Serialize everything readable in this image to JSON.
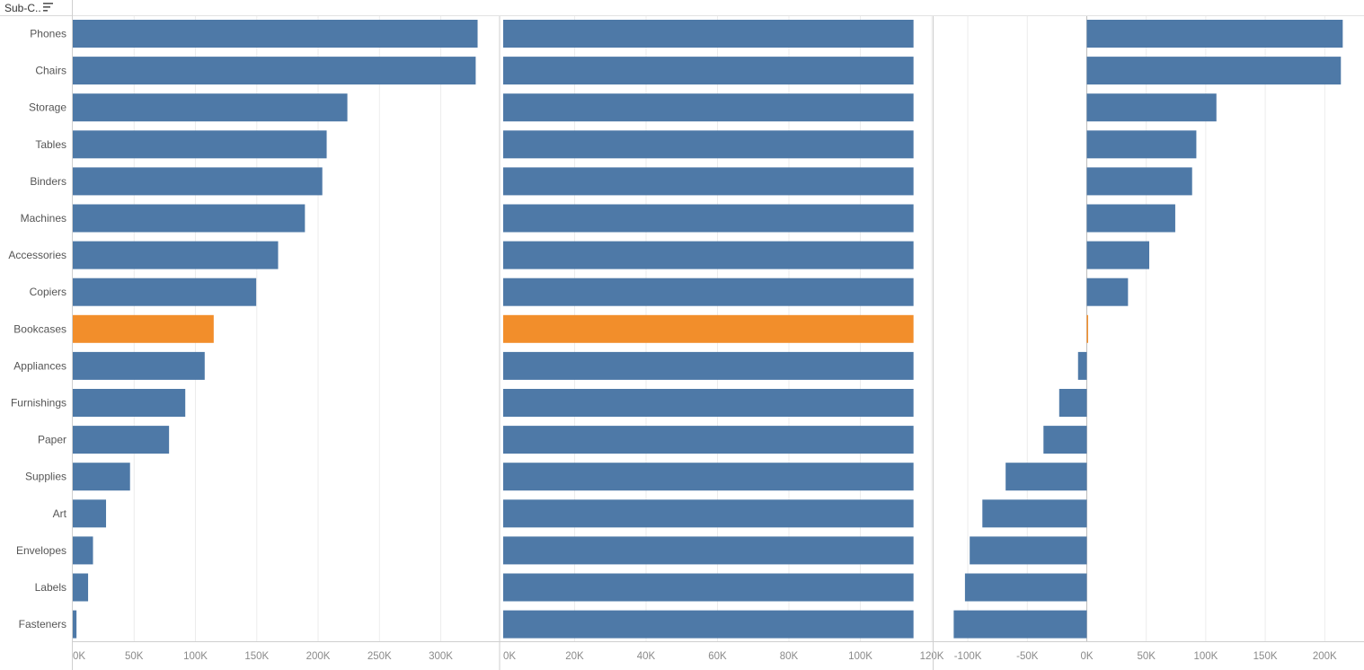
{
  "header": {
    "label": "Sub-C.."
  },
  "colors": {
    "bar": "#4e79a7",
    "highlight": "#f28e2b",
    "grid": "#ececec",
    "axis": "#cfcfcf"
  },
  "chart_data": {
    "type": "bar",
    "orientation": "horizontal",
    "highlight_category": "Bookcases",
    "categories": [
      "Phones",
      "Chairs",
      "Storage",
      "Tables",
      "Binders",
      "Machines",
      "Accessories",
      "Copiers",
      "Bookcases",
      "Appliances",
      "Furnishings",
      "Paper",
      "Supplies",
      "Art",
      "Envelopes",
      "Labels",
      "Fasteners"
    ],
    "panels": [
      {
        "xlim": [
          0,
          345000
        ],
        "ticks": [
          0,
          50000,
          100000,
          150000,
          200000,
          250000,
          300000
        ],
        "tick_labels": [
          "0K",
          "50K",
          "100K",
          "150K",
          "200K",
          "250K",
          "300K"
        ],
        "values": [
          330007,
          328449,
          223844,
          206966,
          203413,
          189239,
          167380,
          149528,
          114880,
          107532,
          91705,
          78479,
          46674,
          27119,
          16476,
          12486,
          3024
        ]
      },
      {
        "xlim": [
          0,
          120000
        ],
        "ticks": [
          0,
          20000,
          40000,
          60000,
          80000,
          100000,
          120000
        ],
        "tick_labels": [
          "0K",
          "20K",
          "40K",
          "60K",
          "80K",
          "100K",
          "120K"
        ],
        "values": [
          114880,
          114880,
          114880,
          114880,
          114880,
          114880,
          114880,
          114880,
          114880,
          114880,
          114880,
          114880,
          114880,
          114880,
          114880,
          114880,
          114880
        ]
      },
      {
        "xlim": [
          -128000,
          233000
        ],
        "ticks": [
          -100000,
          -50000,
          0,
          50000,
          100000,
          150000,
          200000
        ],
        "tick_labels": [
          "-100K",
          "-50K",
          "0K",
          "50K",
          "100K",
          "150K",
          "200K"
        ],
        "values": [
          215127,
          213569,
          108964,
          92086,
          88533,
          74359,
          52500,
          34648,
          0,
          -7348,
          -23175,
          -36401,
          -68206,
          -87761,
          -98404,
          -102394,
          -111856
        ]
      }
    ]
  }
}
